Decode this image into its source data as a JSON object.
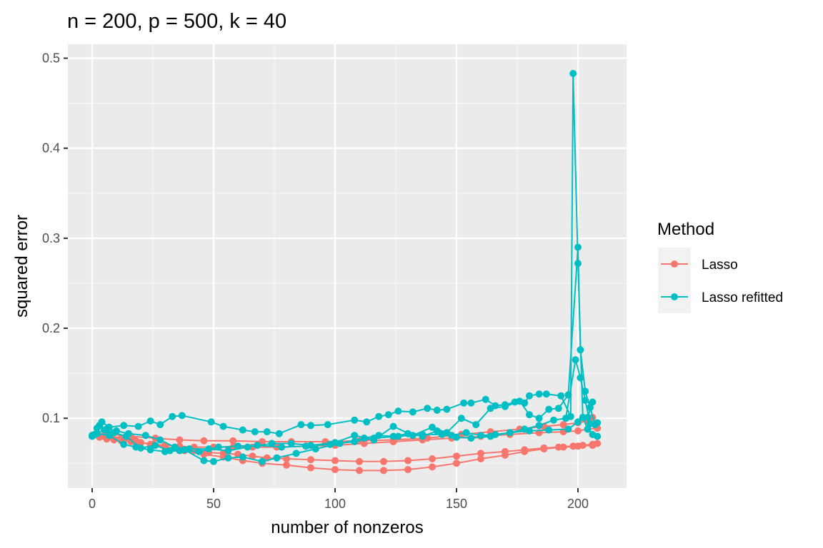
{
  "chart_data": {
    "type": "line",
    "title": "n = 200, p = 500, k = 40",
    "xlabel": "number of nonzeros",
    "ylabel": "squared error",
    "xlim": [
      -10,
      220
    ],
    "ylim": [
      0.0225,
      0.5155
    ],
    "x_ticks": [
      0,
      50,
      100,
      150,
      200
    ],
    "x_tick_labels": [
      "0",
      "50",
      "100",
      "150",
      "200"
    ],
    "y_ticks": [
      0.1,
      0.2,
      0.3,
      0.4,
      0.5
    ],
    "y_tick_labels": [
      "0.1",
      "0.2",
      "0.3",
      "0.4",
      "0.5"
    ],
    "grid": true,
    "legend": {
      "title": "Method",
      "position": "right"
    },
    "series": [
      {
        "name": "Lasso",
        "color": "#F8766D",
        "paths": [
          [
            [
              0,
              0.08
            ],
            [
              3,
              0.079
            ],
            [
              6,
              0.077
            ],
            [
              9,
              0.076
            ],
            [
              12,
              0.075
            ],
            [
              16,
              0.074
            ],
            [
              20,
              0.073
            ],
            [
              25,
              0.071
            ],
            [
              30,
              0.07
            ],
            [
              36,
              0.069
            ],
            [
              42,
              0.068
            ],
            [
              50,
              0.068
            ],
            [
              58,
              0.068
            ],
            [
              66,
              0.068
            ],
            [
              76,
              0.068
            ],
            [
              88,
              0.069
            ],
            [
              100,
              0.07
            ],
            [
              112,
              0.072
            ],
            [
              124,
              0.074
            ],
            [
              136,
              0.076
            ],
            [
              148,
              0.078
            ],
            [
              160,
              0.08
            ],
            [
              172,
              0.082
            ],
            [
              184,
              0.084
            ],
            [
              194,
              0.085
            ],
            [
              200,
              0.086
            ],
            [
              204,
              0.088
            ],
            [
              208,
              0.089
            ]
          ],
          [
            [
              0,
              0.081
            ],
            [
              4,
              0.08
            ],
            [
              8,
              0.079
            ],
            [
              12,
              0.077
            ],
            [
              18,
              0.074
            ],
            [
              24,
              0.071
            ],
            [
              30,
              0.068
            ],
            [
              36,
              0.066
            ],
            [
              42,
              0.064
            ],
            [
              48,
              0.062
            ],
            [
              54,
              0.061
            ],
            [
              60,
              0.06
            ],
            [
              66,
              0.058
            ],
            [
              72,
              0.056
            ],
            [
              80,
              0.055
            ],
            [
              90,
              0.054
            ],
            [
              100,
              0.053
            ],
            [
              110,
              0.052
            ],
            [
              120,
              0.052
            ],
            [
              130,
              0.053
            ],
            [
              140,
              0.055
            ],
            [
              150,
              0.058
            ],
            [
              160,
              0.061
            ],
            [
              170,
              0.063
            ],
            [
              178,
              0.065
            ],
            [
              186,
              0.067
            ],
            [
              192,
              0.068
            ],
            [
              198,
              0.069
            ],
            [
              202,
              0.07
            ],
            [
              206,
              0.071
            ]
          ],
          [
            [
              1,
              0.082
            ],
            [
              6,
              0.081
            ],
            [
              12,
              0.078
            ],
            [
              18,
              0.075
            ],
            [
              24,
              0.071
            ],
            [
              30,
              0.068
            ],
            [
              38,
              0.064
            ],
            [
              46,
              0.06
            ],
            [
              54,
              0.057
            ],
            [
              62,
              0.053
            ],
            [
              70,
              0.05
            ],
            [
              80,
              0.048
            ],
            [
              90,
              0.045
            ],
            [
              100,
              0.043
            ],
            [
              110,
              0.042
            ],
            [
              120,
              0.042
            ],
            [
              130,
              0.043
            ],
            [
              140,
              0.046
            ],
            [
              150,
              0.05
            ],
            [
              160,
              0.055
            ],
            [
              170,
              0.059
            ],
            [
              178,
              0.063
            ],
            [
              186,
              0.066
            ],
            [
              194,
              0.068
            ],
            [
              200,
              0.069
            ],
            [
              206,
              0.07
            ],
            [
              208,
              0.072
            ]
          ],
          [
            [
              2,
              0.083
            ],
            [
              8,
              0.082
            ],
            [
              16,
              0.08
            ],
            [
              26,
              0.078
            ],
            [
              36,
              0.076
            ],
            [
              46,
              0.075
            ],
            [
              58,
              0.075
            ],
            [
              70,
              0.074
            ],
            [
              82,
              0.074
            ],
            [
              96,
              0.074
            ],
            [
              110,
              0.075
            ],
            [
              124,
              0.076
            ],
            [
              138,
              0.078
            ],
            [
              152,
              0.082
            ],
            [
              164,
              0.085
            ],
            [
              176,
              0.088
            ],
            [
              186,
              0.091
            ],
            [
              194,
              0.093
            ],
            [
              200,
              0.095
            ],
            [
              204,
              0.097
            ],
            [
              206,
              0.101
            ]
          ]
        ]
      },
      {
        "name": "Lasso refitted",
        "color": "#00BFC4",
        "paths": [
          [
            [
              0,
              0.08
            ],
            [
              2,
              0.089
            ],
            [
              4,
              0.096
            ],
            [
              7,
              0.09
            ],
            [
              13,
              0.092
            ],
            [
              19,
              0.091
            ],
            [
              24,
              0.097
            ],
            [
              28,
              0.093
            ],
            [
              33,
              0.102
            ],
            [
              37,
              0.103
            ],
            [
              49,
              0.096
            ],
            [
              54,
              0.091
            ],
            [
              62,
              0.087
            ],
            [
              67,
              0.085
            ],
            [
              72,
              0.085
            ],
            [
              77,
              0.083
            ],
            [
              86,
              0.093
            ],
            [
              90,
              0.092
            ],
            [
              97,
              0.093
            ],
            [
              108,
              0.098
            ],
            [
              113,
              0.096
            ],
            [
              118,
              0.102
            ],
            [
              122,
              0.104
            ],
            [
              126,
              0.108
            ],
            [
              132,
              0.107
            ],
            [
              138,
              0.111
            ],
            [
              142,
              0.109
            ],
            [
              146,
              0.11
            ],
            [
              153,
              0.117
            ],
            [
              156,
              0.117
            ],
            [
              162,
              0.121
            ],
            [
              166,
              0.114
            ],
            [
              170,
              0.115
            ],
            [
              174,
              0.118
            ],
            [
              178,
              0.117
            ],
            [
              180,
              0.125
            ],
            [
              184,
              0.127
            ],
            [
              187,
              0.127
            ],
            [
              193,
              0.125
            ],
            [
              197,
              0.102
            ],
            [
              198,
              0.483
            ],
            [
              200,
              0.272
            ],
            [
              202,
              0.101
            ],
            [
              204,
              0.101
            ],
            [
              206,
              0.118
            ]
          ],
          [
            [
              0,
              0.081
            ],
            [
              3,
              0.092
            ],
            [
              6,
              0.088
            ],
            [
              10,
              0.086
            ],
            [
              15,
              0.083
            ],
            [
              22,
              0.081
            ],
            [
              28,
              0.076
            ],
            [
              34,
              0.068
            ],
            [
              40,
              0.066
            ],
            [
              48,
              0.066
            ],
            [
              56,
              0.064
            ],
            [
              64,
              0.068
            ],
            [
              74,
              0.072
            ],
            [
              82,
              0.072
            ],
            [
              90,
              0.07
            ],
            [
              100,
              0.073
            ],
            [
              108,
              0.081
            ],
            [
              116,
              0.076
            ],
            [
              124,
              0.091
            ],
            [
              132,
              0.081
            ],
            [
              140,
              0.09
            ],
            [
              146,
              0.084
            ],
            [
              152,
              0.1
            ],
            [
              158,
              0.093
            ],
            [
              164,
              0.111
            ],
            [
              170,
              0.113
            ],
            [
              176,
              0.119
            ],
            [
              180,
              0.104
            ],
            [
              184,
              0.1
            ],
            [
              188,
              0.11
            ],
            [
              192,
              0.111
            ],
            [
              196,
              0.126
            ],
            [
              200,
              0.29
            ],
            [
              201,
              0.176
            ],
            [
              203,
              0.13
            ],
            [
              205,
              0.112
            ],
            [
              207,
              0.093
            ]
          ],
          [
            [
              1,
              0.082
            ],
            [
              5,
              0.087
            ],
            [
              9,
              0.084
            ],
            [
              14,
              0.08
            ],
            [
              20,
              0.067
            ],
            [
              26,
              0.07
            ],
            [
              32,
              0.064
            ],
            [
              38,
              0.065
            ],
            [
              46,
              0.053
            ],
            [
              50,
              0.052
            ],
            [
              56,
              0.056
            ],
            [
              62,
              0.057
            ],
            [
              70,
              0.052
            ],
            [
              76,
              0.056
            ],
            [
              84,
              0.061
            ],
            [
              92,
              0.066
            ],
            [
              102,
              0.072
            ],
            [
              112,
              0.078
            ],
            [
              118,
              0.081
            ],
            [
              124,
              0.08
            ],
            [
              130,
              0.083
            ],
            [
              136,
              0.08
            ],
            [
              142,
              0.086
            ],
            [
              148,
              0.081
            ],
            [
              154,
              0.084
            ],
            [
              160,
              0.081
            ],
            [
              166,
              0.082
            ],
            [
              172,
              0.084
            ],
            [
              178,
              0.088
            ],
            [
              184,
              0.092
            ],
            [
              190,
              0.098
            ],
            [
              195,
              0.1
            ],
            [
              199,
              0.165
            ],
            [
              201,
              0.145
            ],
            [
              203,
              0.12
            ],
            [
              205,
              0.094
            ],
            [
              208,
              0.095
            ]
          ],
          [
            [
              2,
              0.083
            ],
            [
              7,
              0.081
            ],
            [
              13,
              0.071
            ],
            [
              18,
              0.068
            ],
            [
              24,
              0.065
            ],
            [
              30,
              0.063
            ],
            [
              36,
              0.064
            ],
            [
              44,
              0.063
            ],
            [
              52,
              0.068
            ],
            [
              60,
              0.069
            ],
            [
              68,
              0.07
            ],
            [
              78,
              0.068
            ],
            [
              88,
              0.069
            ],
            [
              98,
              0.071
            ],
            [
              108,
              0.074
            ],
            [
              116,
              0.078
            ],
            [
              126,
              0.08
            ],
            [
              136,
              0.082
            ],
            [
              144,
              0.082
            ],
            [
              150,
              0.079
            ],
            [
              156,
              0.078
            ],
            [
              164,
              0.08
            ],
            [
              172,
              0.084
            ],
            [
              180,
              0.086
            ],
            [
              188,
              0.087
            ],
            [
              196,
              0.088
            ],
            [
              200,
              0.096
            ],
            [
              202,
              0.101
            ],
            [
              204,
              0.088
            ],
            [
              206,
              0.082
            ],
            [
              208,
              0.08
            ]
          ]
        ]
      }
    ]
  }
}
